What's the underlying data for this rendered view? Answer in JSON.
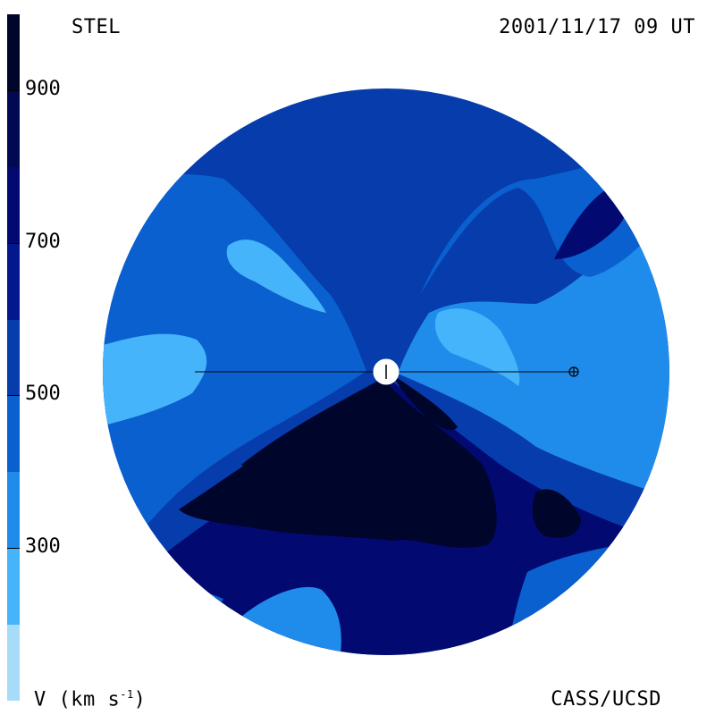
{
  "header": {
    "instrument": "STEL",
    "datetime": "2001/11/17 09 UT"
  },
  "footer": {
    "units_prefix": "V (km s",
    "units_exp": "-1",
    "units_suffix": ")",
    "credit": "CASS/UCSD"
  },
  "colorbar": {
    "levels": [
      {
        "from": 100,
        "to": 200,
        "color": "#a6dcf8"
      },
      {
        "from": 200,
        "to": 300,
        "color": "#46b4fb"
      },
      {
        "from": 300,
        "to": 400,
        "color": "#1f8cec"
      },
      {
        "from": 400,
        "to": 500,
        "color": "#0a60cf"
      },
      {
        "from": 500,
        "to": 600,
        "color": "#063cac"
      },
      {
        "from": 600,
        "to": 700,
        "color": "#03188e"
      },
      {
        "from": 700,
        "to": 800,
        "color": "#020a72"
      },
      {
        "from": 800,
        "to": 900,
        "color": "#010952"
      },
      {
        "from": 900,
        "to": 1000,
        "color": "#00052b"
      }
    ],
    "tick_labels": [
      "900",
      "700",
      "500",
      "300"
    ],
    "tick_values": [
      900,
      700,
      500,
      300
    ],
    "range": [
      100,
      1000
    ]
  },
  "chart_data": {
    "type": "heatmap",
    "title": "",
    "quantity": "solar wind velocity",
    "unit": "km s-1",
    "value_range": [
      100,
      1000
    ],
    "regions": [
      {
        "name": "upper hemisphere",
        "value": 550
      },
      {
        "name": "lower core",
        "value": 950
      },
      {
        "name": "lower mid band",
        "value": 750
      },
      {
        "name": "left flank",
        "value": 450
      },
      {
        "name": "right flank",
        "value": 350
      },
      {
        "name": "upper-right patch",
        "value": 750
      },
      {
        "name": "left tongue",
        "value": 250
      },
      {
        "name": "right inner patch",
        "value": 250
      },
      {
        "name": "lower-left patch",
        "value": 350
      }
    ],
    "annotations": [
      "Sun",
      "Earth"
    ]
  }
}
